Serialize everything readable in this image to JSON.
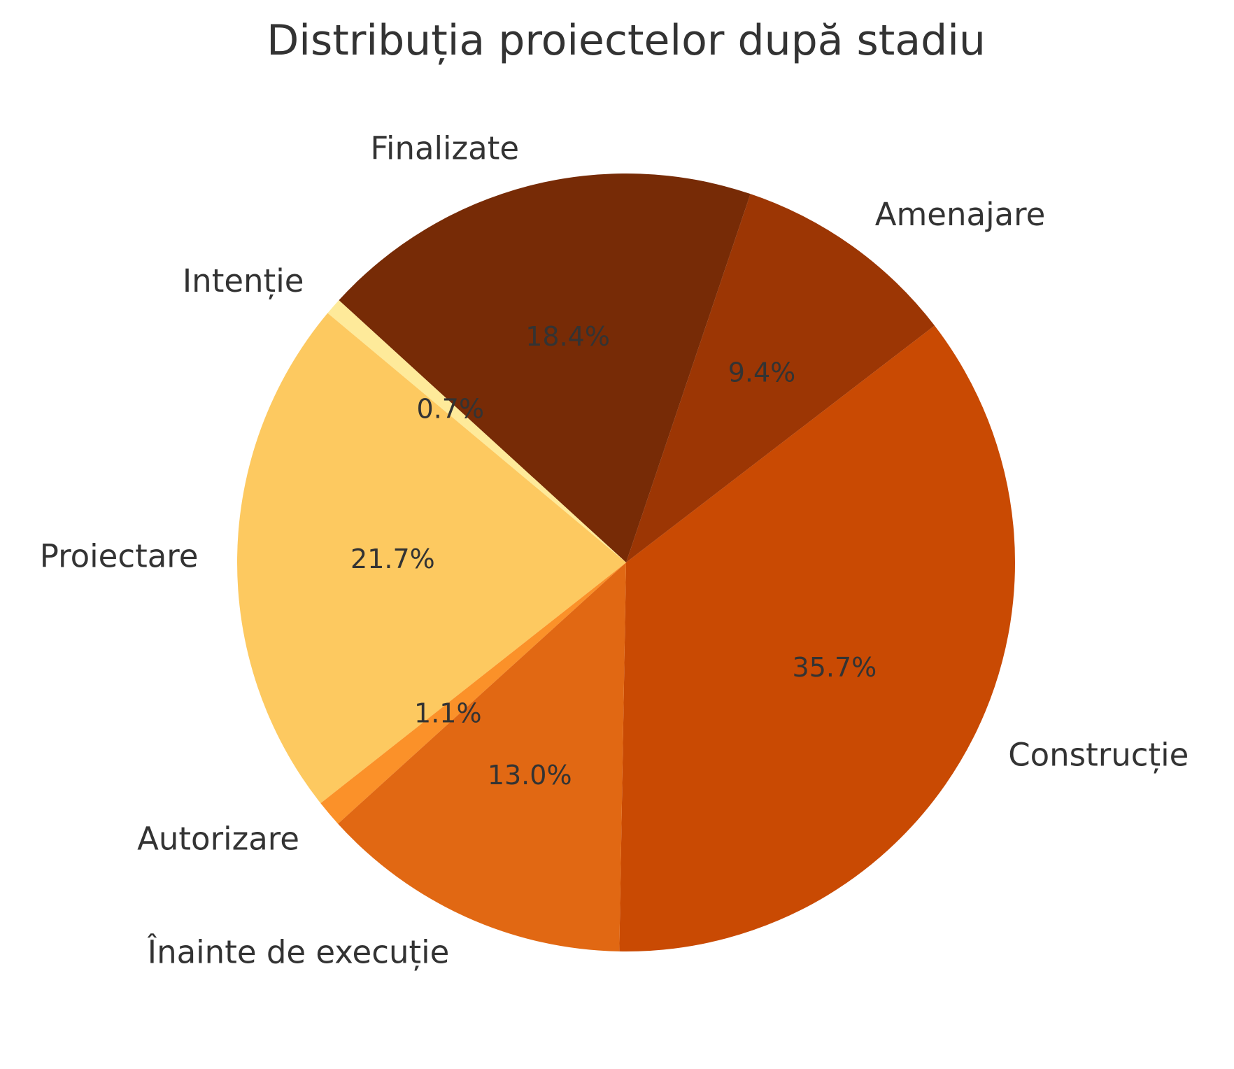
{
  "chart_data": {
    "type": "pie",
    "title": "Distribuția proiectelor după stadiu",
    "slices": [
      {
        "label": "Construcție",
        "value": 35.7,
        "pct_label": "35.7%",
        "color": "#c94a03"
      },
      {
        "label": "Amenajare",
        "value": 9.4,
        "pct_label": "9.4%",
        "color": "#9c3604"
      },
      {
        "label": "Finalizate",
        "value": 18.4,
        "pct_label": "18.4%",
        "color": "#772b06"
      },
      {
        "label": "Intenție",
        "value": 0.7,
        "pct_label": "0.7%",
        "color": "#feea9a"
      },
      {
        "label": "Proiectare",
        "value": 21.7,
        "pct_label": "21.7%",
        "color": "#fdc960"
      },
      {
        "label": "Autorizare",
        "value": 1.1,
        "pct_label": "1.1%",
        "color": "#fb9129"
      },
      {
        "label": "Înainte de execuție",
        "value": 13.0,
        "pct_label": "13.0%",
        "color": "#e16813"
      }
    ],
    "start_angle_deg": -91,
    "direction": "counterclockwise",
    "legend": "none"
  }
}
